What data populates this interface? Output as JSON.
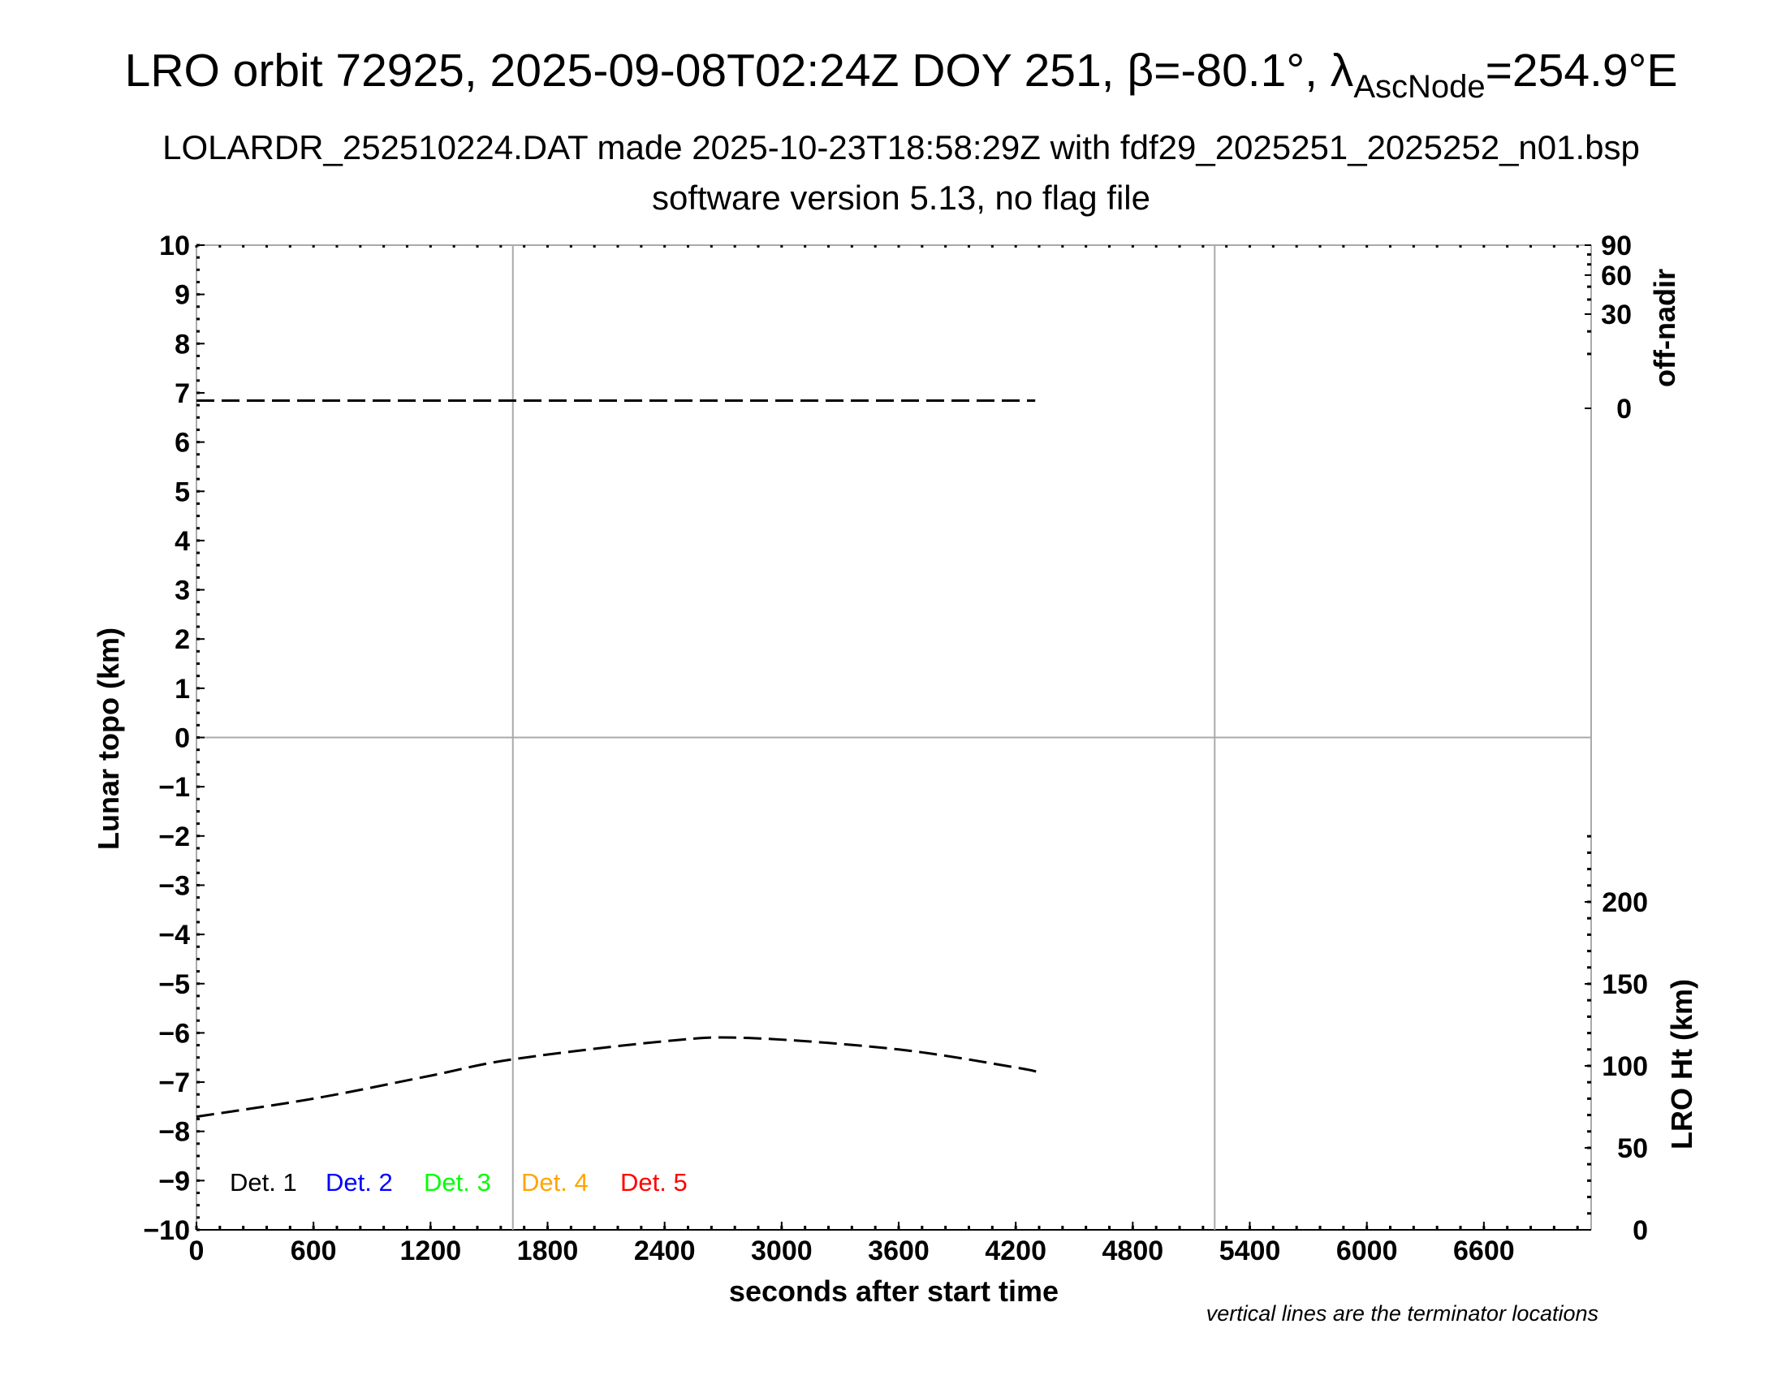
{
  "header": {
    "title_prefix": "LRO orbit 72925, 2025-09-08T02:24Z DOY 251, β=-80.1°, λ",
    "title_sub": "AscNode",
    "title_suffix": "=254.9°E",
    "subtitle": "LOLARDR_252510224.DAT made 2025-10-23T18:58:29Z with fdf29_2025251_2025252_n01.bsp",
    "subtitle2": "software version 5.13, no flag file"
  },
  "chart_data": {
    "type": "line",
    "xlabel": "seconds after start time",
    "ylabel": "Lunar topo (km)",
    "xlim": [
      0,
      7150
    ],
    "ylim": [
      -10,
      10
    ],
    "xticks": [
      0,
      600,
      1200,
      1800,
      2400,
      3000,
      3600,
      4200,
      4800,
      5400,
      6000,
      6600
    ],
    "yticks": [
      10,
      9,
      8,
      7,
      6,
      5,
      4,
      3,
      2,
      1,
      0,
      -1,
      -2,
      -3,
      -4,
      -5,
      -6,
      -7,
      -8,
      -9,
      -10
    ],
    "ytick_labels": [
      "10",
      "9",
      "8",
      "7",
      "6",
      "5",
      "4",
      "3",
      "2",
      "1",
      "0",
      "−1",
      "−2",
      "−3",
      "−4",
      "−5",
      "−6",
      "−7",
      "−8",
      "−9",
      "−10"
    ],
    "right_axis_top": {
      "label": "off-nadir",
      "scale": "sqrt",
      "range": [
        0,
        90
      ],
      "ticks": [
        90,
        60,
        30,
        0
      ]
    },
    "right_axis_bottom": {
      "label": "LRO Ht (km)",
      "range": [
        0,
        240
      ],
      "ticks": [
        200,
        150,
        100,
        50,
        0
      ]
    },
    "terminators_s": [
      1622,
      5220
    ],
    "series": [
      {
        "axis": "off-nadir",
        "style": "dashed",
        "color": "#000000",
        "x": [
          0,
          4300
        ],
        "y": [
          0.2,
          0.2
        ]
      },
      {
        "axis": "LRO Ht (km)",
        "style": "dashed",
        "color": "#000000",
        "x": [
          0,
          600,
          1200,
          1622,
          2400,
          2830,
          3600,
          4200,
          4317
        ],
        "y": [
          69,
          80,
          94,
          104,
          115,
          117,
          110,
          99,
          96
        ]
      }
    ],
    "legend": [
      {
        "label": "Det. 1",
        "color": "#000000"
      },
      {
        "label": "Det. 2",
        "color": "#0000ff"
      },
      {
        "label": "Det. 3",
        "color": "#00ff00"
      },
      {
        "label": "Det. 4",
        "color": "#ffa500"
      },
      {
        "label": "Det. 5",
        "color": "#ff0000"
      }
    ],
    "legend_placement": "bottom-left",
    "note": "vertical lines are the terminator locations"
  }
}
